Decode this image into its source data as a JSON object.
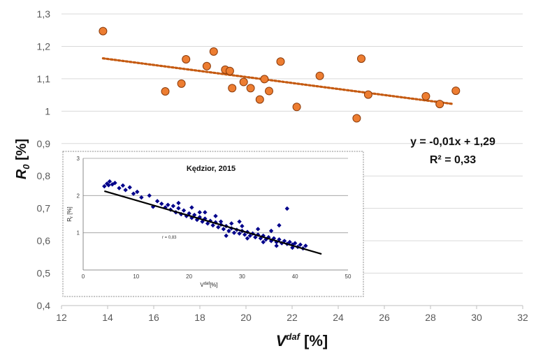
{
  "colors": {
    "main_marker_fill": "#ED7D31",
    "main_marker_edge": "#8A3A0A",
    "trendline": "#C55A11",
    "gridline": "#D9D9D9",
    "inset_marker": "#00008B",
    "inset_line": "#000000"
  },
  "chart_data": [
    {
      "type": "scatter",
      "xlabel_main": "V",
      "xlabel_sup": "daf",
      "xlabel_unit": " [%]",
      "ylabel_main": "R",
      "ylabel_sub": "0",
      "ylabel_unit": " [%]",
      "xlim": [
        12,
        32
      ],
      "ylim": [
        0.4,
        1.3
      ],
      "x_ticks": [
        12,
        14,
        16,
        18,
        20,
        22,
        24,
        26,
        28,
        30,
        32
      ],
      "x_tick_labels": [
        "12",
        "14",
        "16",
        "18",
        "20",
        "22",
        "24",
        "26",
        "28",
        "30",
        "32"
      ],
      "y_ticks": [
        0.4,
        0.5,
        0.6,
        0.7,
        0.8,
        0.9,
        1.0,
        1.1,
        1.2,
        1.3
      ],
      "y_tick_labels": [
        "0,4",
        "0,5",
        "0,6",
        "0,7",
        "0,8",
        "0,9",
        "1",
        "1,1",
        "1,2",
        "1,3"
      ],
      "grid": "horizontal",
      "equation": "y = -0,01x + 1,29",
      "r_squared": "R² = 0,33",
      "trendline": {
        "x": [
          13.8,
          29.0
        ],
        "y": [
          1.163,
          1.022
        ]
      },
      "points": [
        {
          "x": 13.8,
          "y": 1.247
        },
        {
          "x": 16.5,
          "y": 1.061
        },
        {
          "x": 17.2,
          "y": 1.085
        },
        {
          "x": 17.4,
          "y": 1.16
        },
        {
          "x": 18.3,
          "y": 1.139
        },
        {
          "x": 18.6,
          "y": 1.184
        },
        {
          "x": 19.1,
          "y": 1.128
        },
        {
          "x": 19.3,
          "y": 1.124
        },
        {
          "x": 19.4,
          "y": 1.071
        },
        {
          "x": 19.9,
          "y": 1.09
        },
        {
          "x": 20.2,
          "y": 1.071
        },
        {
          "x": 20.6,
          "y": 1.036
        },
        {
          "x": 20.8,
          "y": 1.099
        },
        {
          "x": 21.0,
          "y": 1.062
        },
        {
          "x": 21.5,
          "y": 1.153
        },
        {
          "x": 22.2,
          "y": 1.013
        },
        {
          "x": 23.2,
          "y": 1.109
        },
        {
          "x": 24.8,
          "y": 0.978
        },
        {
          "x": 25.0,
          "y": 1.162
        },
        {
          "x": 25.3,
          "y": 1.051
        },
        {
          "x": 27.8,
          "y": 1.046
        },
        {
          "x": 28.4,
          "y": 1.022
        },
        {
          "x": 29.1,
          "y": 1.063
        }
      ]
    },
    {
      "type": "scatter",
      "title": "Kędzior, 2015",
      "xlabel_main": "V",
      "xlabel_sup": "daf",
      "xlabel_unit": "[%]",
      "ylabel_main": "R",
      "ylabel_sub": "r",
      "ylabel_unit": " [%]",
      "annotation": "r = 0,83",
      "xlim": [
        0,
        50
      ],
      "ylim": [
        0,
        3
      ],
      "x_ticks": [
        0,
        10,
        20,
        30,
        40,
        50
      ],
      "x_tick_labels": [
        "0",
        "10",
        "20",
        "30",
        "40",
        "50"
      ],
      "y_ticks": [
        1,
        2,
        3
      ],
      "y_tick_labels": [
        "1",
        "2",
        "3"
      ],
      "grid": "horizontal",
      "regression": {
        "x": [
          4.0,
          45.0
        ],
        "y": [
          2.12,
          0.43
        ]
      },
      "points": [
        [
          4.0,
          2.25
        ],
        [
          4.5,
          2.32
        ],
        [
          4.8,
          2.28
        ],
        [
          5.0,
          2.38
        ],
        [
          5.5,
          2.3
        ],
        [
          6.0,
          2.34
        ],
        [
          6.8,
          2.2
        ],
        [
          7.5,
          2.27
        ],
        [
          8.0,
          2.15
        ],
        [
          8.8,
          2.22
        ],
        [
          9.5,
          2.05
        ],
        [
          10.2,
          2.1
        ],
        [
          11.0,
          1.95
        ],
        [
          12.5,
          2.0
        ],
        [
          13.2,
          1.7
        ],
        [
          14.0,
          1.85
        ],
        [
          14.8,
          1.78
        ],
        [
          15.5,
          1.68
        ],
        [
          16.0,
          1.75
        ],
        [
          16.5,
          1.62
        ],
        [
          17.0,
          1.72
        ],
        [
          17.5,
          1.55
        ],
        [
          18.0,
          1.66
        ],
        [
          18.5,
          1.5
        ],
        [
          19.0,
          1.6
        ],
        [
          19.5,
          1.45
        ],
        [
          20.0,
          1.52
        ],
        [
          20.5,
          1.4
        ],
        [
          21.0,
          1.48
        ],
        [
          21.5,
          1.35
        ],
        [
          22.0,
          1.42
        ],
        [
          22.5,
          1.3
        ],
        [
          23.0,
          1.38
        ],
        [
          23.5,
          1.25
        ],
        [
          24.0,
          1.32
        ],
        [
          24.5,
          1.2
        ],
        [
          25.0,
          1.28
        ],
        [
          25.5,
          1.15
        ],
        [
          26.0,
          1.22
        ],
        [
          26.5,
          1.1
        ],
        [
          27.0,
          1.18
        ],
        [
          27.5,
          1.05
        ],
        [
          28.0,
          1.12
        ],
        [
          28.5,
          1.0
        ],
        [
          29.0,
          1.08
        ],
        [
          29.5,
          0.98
        ],
        [
          30.0,
          1.05
        ],
        [
          30.5,
          0.95
        ],
        [
          31.0,
          1.02
        ],
        [
          31.5,
          0.92
        ],
        [
          32.0,
          0.98
        ],
        [
          32.5,
          0.88
        ],
        [
          33.0,
          0.95
        ],
        [
          33.5,
          0.85
        ],
        [
          34.0,
          0.92
        ],
        [
          34.5,
          0.82
        ],
        [
          35.0,
          0.88
        ],
        [
          35.5,
          0.78
        ],
        [
          36.0,
          0.85
        ],
        [
          36.5,
          0.75
        ],
        [
          37.0,
          0.82
        ],
        [
          37.5,
          0.72
        ],
        [
          38.0,
          0.78
        ],
        [
          38.5,
          0.7
        ],
        [
          39.0,
          0.75
        ],
        [
          39.5,
          0.68
        ],
        [
          40.0,
          0.72
        ],
        [
          40.5,
          0.62
        ],
        [
          41.0,
          0.68
        ],
        [
          41.5,
          0.58
        ],
        [
          42.0,
          0.65
        ],
        [
          18.0,
          1.8
        ],
        [
          20.5,
          1.68
        ],
        [
          23.0,
          1.55
        ],
        [
          26.0,
          1.3
        ],
        [
          28.0,
          1.25
        ],
        [
          30.0,
          1.18
        ],
        [
          33.0,
          1.1
        ],
        [
          35.5,
          1.05
        ],
        [
          37.0,
          1.2
        ],
        [
          38.5,
          1.65
        ],
        [
          31.0,
          0.85
        ],
        [
          34.0,
          0.75
        ],
        [
          36.5,
          0.65
        ],
        [
          39.5,
          0.6
        ],
        [
          27.0,
          0.92
        ],
        [
          25.0,
          1.45
        ],
        [
          22.0,
          1.55
        ],
        [
          29.5,
          1.3
        ]
      ]
    }
  ]
}
